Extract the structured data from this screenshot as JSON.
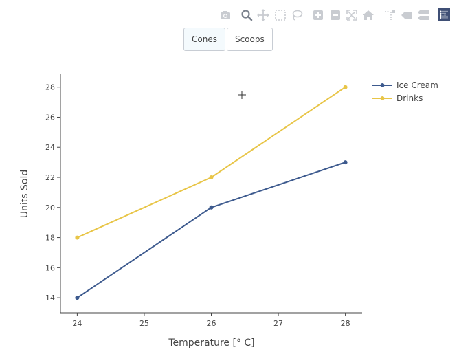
{
  "modebar": {
    "icons": [
      "camera-icon",
      "zoom-icon",
      "pan-icon",
      "box-select-icon",
      "lasso-icon",
      "zoom-in-icon",
      "zoom-out-icon",
      "autoscale-icon",
      "reset-axes-icon",
      "spike-lines-icon",
      "hover-closest-icon",
      "hover-compare-icon",
      "plotly-logo-icon"
    ],
    "inactive_color": "#c9ccd1",
    "active_color": "#7a818c",
    "logo_color": "#3f4f75"
  },
  "buttons": [
    {
      "label": "Cones",
      "active": true
    },
    {
      "label": "Scoops",
      "active": false
    }
  ],
  "chart_data": {
    "type": "line",
    "x": [
      24,
      26,
      28
    ],
    "xlabel": "Temperature [° C]",
    "ylabel": "Units Sold",
    "xlim": [
      23.75,
      28.25
    ],
    "ylim": [
      13,
      28.9
    ],
    "xticks": [
      24,
      25,
      26,
      27,
      28
    ],
    "yticks": [
      14,
      16,
      18,
      20,
      22,
      24,
      26,
      28
    ],
    "grid": false,
    "legend_position": "top-right",
    "series": [
      {
        "name": "Ice Cream",
        "values": [
          14,
          20,
          23
        ],
        "color": "#3d5a8e"
      },
      {
        "name": "Drinks",
        "values": [
          18,
          22,
          28
        ],
        "color": "#e8c547"
      }
    ]
  }
}
